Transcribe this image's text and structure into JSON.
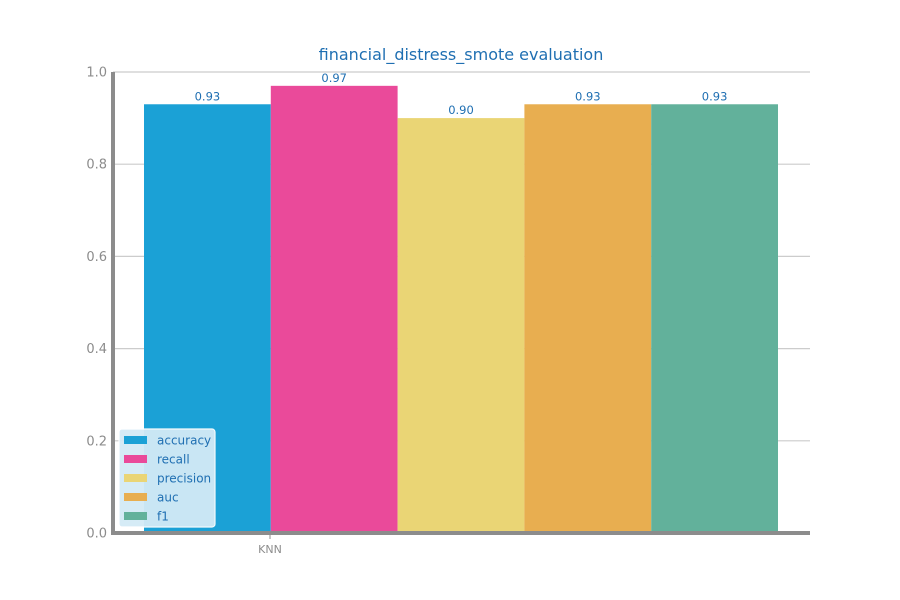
{
  "chart_data": {
    "type": "bar",
    "title": "financial_distress_smote evaluation",
    "xlabel": "",
    "ylabel": "",
    "categories": [
      "KNN"
    ],
    "ylim": [
      0,
      1.0
    ],
    "yticks": [
      "0.0",
      "0.2",
      "0.4",
      "0.6",
      "0.8",
      "1.0"
    ],
    "grid": "y",
    "legend_position": "bottom-left",
    "series": [
      {
        "name": "accuracy",
        "values": [
          0.93
        ],
        "label": "0.93",
        "color": "#1ba1d6"
      },
      {
        "name": "recall",
        "values": [
          0.97
        ],
        "label": "0.97",
        "color": "#ea4a9a"
      },
      {
        "name": "precision",
        "values": [
          0.9
        ],
        "label": "0.90",
        "color": "#ead575"
      },
      {
        "name": "auc",
        "values": [
          0.93
        ],
        "label": "0.93",
        "color": "#e8ae50"
      },
      {
        "name": "f1",
        "values": [
          0.93
        ],
        "label": "0.93",
        "color": "#62b19b"
      }
    ]
  },
  "colors": {
    "axis": "#8c8c8c",
    "grid": "#cccccc",
    "title": "#1f6fb2",
    "legend_bg": "#d3eaf6"
  }
}
